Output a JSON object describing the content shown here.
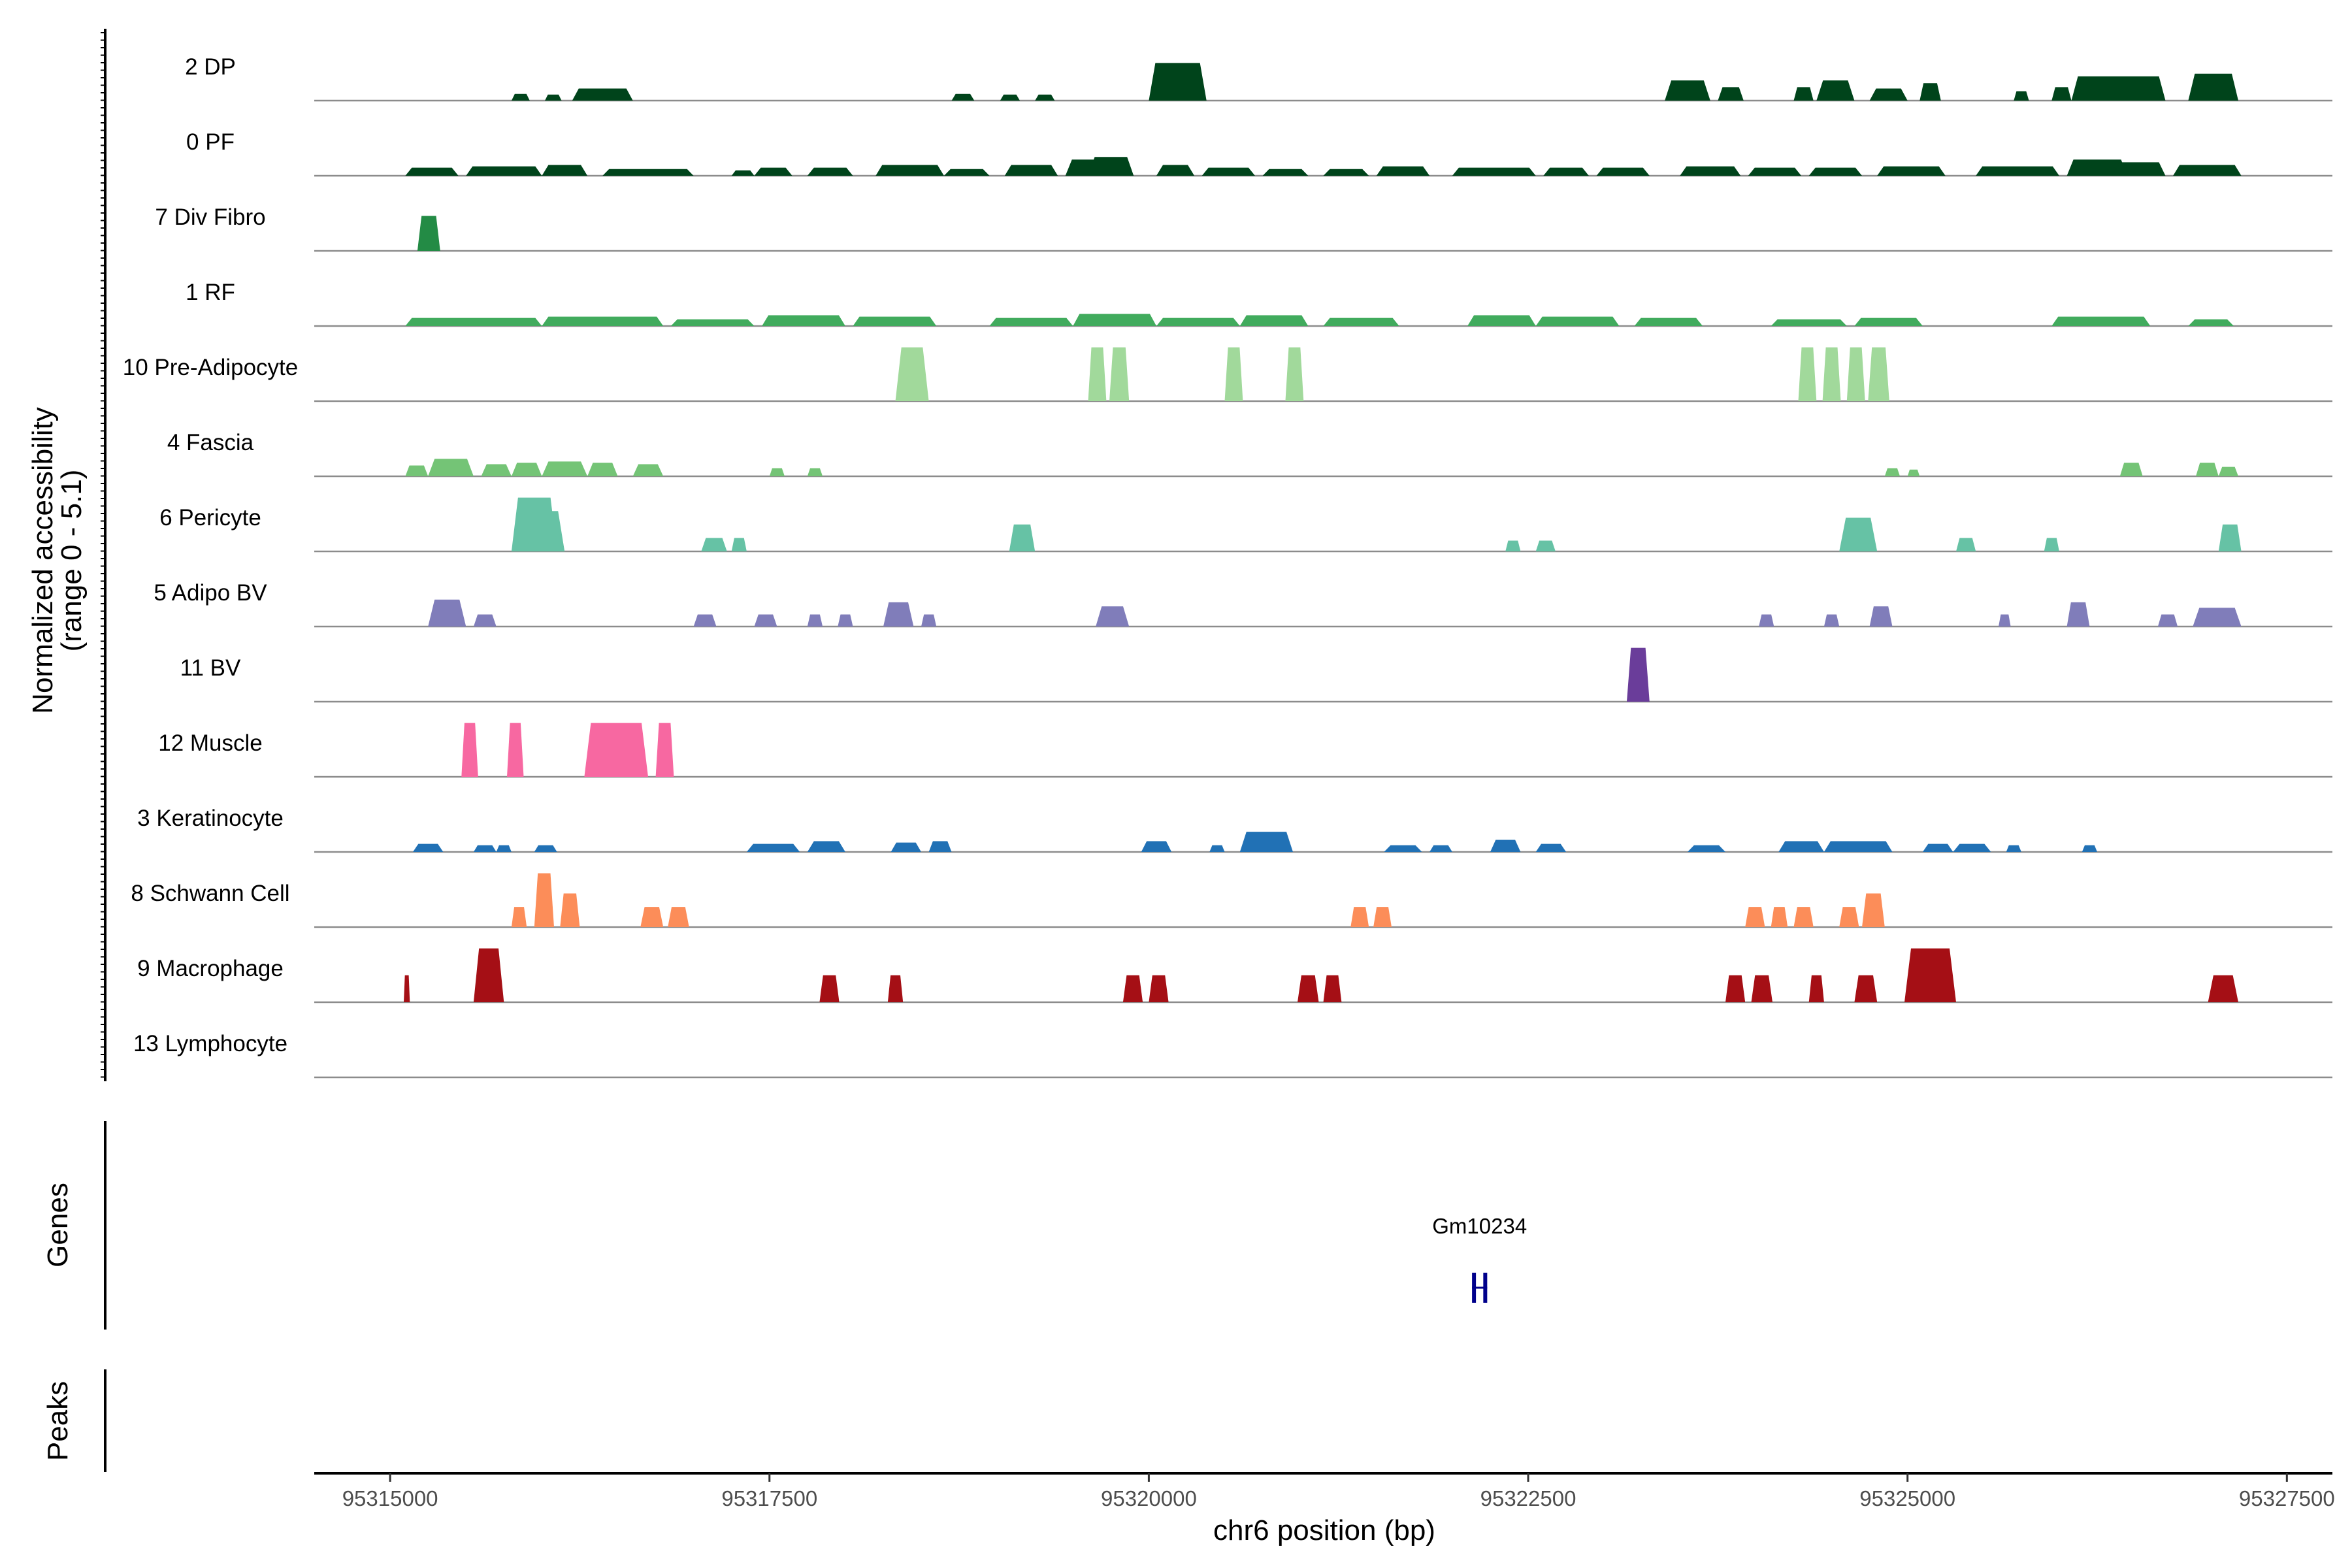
{
  "chart_data": {
    "type": "area",
    "title": "",
    "ylabel_line1": "Normalized accessibility",
    "ylabel_line2": "(range 0 - 5.1)",
    "y_range": [
      0,
      5.1
    ],
    "xlabel": "chr6 position (bp)",
    "x_range": [
      95314500,
      95327800
    ],
    "x_ticks": [
      95315000,
      95317500,
      95320000,
      95322500,
      95325000,
      95327500
    ],
    "x_tick_labels": [
      "95315000",
      "95317500",
      "95320000",
      "95322500",
      "95325000",
      "95327500"
    ],
    "genes_panel_label": "Genes",
    "peaks_panel_label": "Peaks",
    "genes": [
      {
        "name": "Gm10234",
        "start": 95322130,
        "end": 95322230,
        "strand": "-"
      }
    ],
    "peaks": [],
    "tracks": [
      {
        "name": "2 DP",
        "color": "#00441b",
        "peaks": [
          [
            95315800,
            95315920,
            0.5
          ],
          [
            95316020,
            95316130,
            0.45
          ],
          [
            95316200,
            95316600,
            0.9
          ],
          [
            95318700,
            95318850,
            0.5
          ],
          [
            95319020,
            95319150,
            0.45
          ],
          [
            95319250,
            95319380,
            0.45
          ],
          [
            95320000,
            95320380,
            2.8
          ],
          [
            95323400,
            95323700,
            1.5
          ],
          [
            95323750,
            95323920,
            1.0
          ],
          [
            95324250,
            95324380,
            1.0
          ],
          [
            95324400,
            95324650,
            1.5
          ],
          [
            95324750,
            95325000,
            0.9
          ],
          [
            95325080,
            95325220,
            1.3
          ],
          [
            95325700,
            95325800,
            0.7
          ],
          [
            95325950,
            95326080,
            1.0
          ],
          [
            95326080,
            95326700,
            1.8
          ],
          [
            95326850,
            95327180,
            2.0
          ]
        ]
      },
      {
        "name": "0 PF",
        "color": "#00441b",
        "peaks": [
          [
            95315100,
            95315450,
            0.6
          ],
          [
            95315500,
            95316000,
            0.7
          ],
          [
            95316000,
            95316300,
            0.8
          ],
          [
            95316400,
            95317000,
            0.5
          ],
          [
            95317250,
            95317400,
            0.4
          ],
          [
            95317400,
            95317650,
            0.6
          ],
          [
            95317750,
            95318050,
            0.6
          ],
          [
            95318200,
            95318650,
            0.8
          ],
          [
            95318650,
            95318950,
            0.5
          ],
          [
            95319050,
            95319400,
            0.8
          ],
          [
            95319450,
            95319900,
            1.2
          ],
          [
            95319600,
            95319900,
            1.4
          ],
          [
            95320050,
            95320300,
            0.8
          ],
          [
            95320350,
            95320700,
            0.6
          ],
          [
            95320750,
            95321050,
            0.5
          ],
          [
            95321150,
            95321450,
            0.5
          ],
          [
            95321500,
            95321850,
            0.7
          ],
          [
            95322000,
            95322550,
            0.6
          ],
          [
            95322600,
            95322900,
            0.6
          ],
          [
            95322950,
            95323300,
            0.6
          ],
          [
            95323500,
            95323900,
            0.7
          ],
          [
            95323950,
            95324300,
            0.6
          ],
          [
            95324350,
            95324700,
            0.6
          ],
          [
            95324800,
            95325250,
            0.7
          ],
          [
            95325450,
            95326000,
            0.7
          ],
          [
            95326050,
            95326450,
            1.2
          ],
          [
            95326350,
            95326700,
            1.0
          ],
          [
            95326750,
            95327200,
            0.8
          ]
        ]
      },
      {
        "name": "7 Div Fibro",
        "color": "#238b45",
        "peaks": [
          [
            95315180,
            95315330,
            2.6
          ]
        ]
      },
      {
        "name": "1 RF",
        "color": "#41ab5d",
        "peaks": [
          [
            95315100,
            95316000,
            0.6
          ],
          [
            95316000,
            95316800,
            0.7
          ],
          [
            95316850,
            95317400,
            0.5
          ],
          [
            95317450,
            95318000,
            0.8
          ],
          [
            95318050,
            95318600,
            0.7
          ],
          [
            95318950,
            95319500,
            0.6
          ],
          [
            95319500,
            95320050,
            0.9
          ],
          [
            95320050,
            95320600,
            0.6
          ],
          [
            95320600,
            95321050,
            0.8
          ],
          [
            95321150,
            95321650,
            0.6
          ],
          [
            95322100,
            95322550,
            0.8
          ],
          [
            95322550,
            95323100,
            0.7
          ],
          [
            95323200,
            95323650,
            0.6
          ],
          [
            95324100,
            95324600,
            0.5
          ],
          [
            95324650,
            95325100,
            0.6
          ],
          [
            95325950,
            95326600,
            0.7
          ],
          [
            95326850,
            95327150,
            0.5
          ]
        ]
      },
      {
        "name": "10 Pre-Adipocyte",
        "color": "#a1d99b",
        "peaks": [
          [
            95318330,
            95318550,
            4.0
          ],
          [
            95319600,
            95319720,
            4.0
          ],
          [
            95319740,
            95319870,
            4.0
          ],
          [
            95320500,
            95320620,
            4.0
          ],
          [
            95320900,
            95321020,
            4.0
          ],
          [
            95324280,
            95324400,
            4.0
          ],
          [
            95324440,
            95324560,
            4.0
          ],
          [
            95324600,
            95324720,
            4.0
          ],
          [
            95324740,
            95324880,
            4.0
          ]
        ]
      },
      {
        "name": "4 Fascia",
        "color": "#74c476",
        "peaks": [
          [
            95315100,
            95315250,
            0.8
          ],
          [
            95315250,
            95315550,
            1.3
          ],
          [
            95315600,
            95315800,
            0.9
          ],
          [
            95315800,
            95316000,
            1.0
          ],
          [
            95316000,
            95316300,
            1.1
          ],
          [
            95316300,
            95316500,
            1.0
          ],
          [
            95316600,
            95316800,
            0.9
          ],
          [
            95317500,
            95317600,
            0.6
          ],
          [
            95317750,
            95317850,
            0.6
          ],
          [
            95324850,
            95324950,
            0.6
          ],
          [
            95325000,
            95325080,
            0.5
          ],
          [
            95326400,
            95326550,
            1.0
          ],
          [
            95326900,
            95327050,
            1.0
          ],
          [
            95327050,
            95327180,
            0.7
          ]
        ]
      },
      {
        "name": "6 Pericyte",
        "color": "#66c2a5",
        "peaks": [
          [
            95315800,
            95316100,
            4.0
          ],
          [
            95315900,
            95316150,
            3.0
          ],
          [
            95317050,
            95317220,
            1.0
          ],
          [
            95317250,
            95317350,
            1.0
          ],
          [
            95319080,
            95319250,
            2.0
          ],
          [
            95322350,
            95322450,
            0.8
          ],
          [
            95322550,
            95322680,
            0.8
          ],
          [
            95324550,
            95324800,
            2.5
          ],
          [
            95325320,
            95325450,
            1.0
          ],
          [
            95325900,
            95326000,
            1.0
          ],
          [
            95327050,
            95327200,
            2.0
          ]
        ]
      },
      {
        "name": "5 Adipo BV",
        "color": "#807dba",
        "peaks": [
          [
            95315250,
            95315500,
            2.0
          ],
          [
            95315550,
            95315700,
            0.9
          ],
          [
            95317000,
            95317150,
            0.9
          ],
          [
            95317400,
            95317550,
            0.9
          ],
          [
            95317750,
            95317850,
            0.9
          ],
          [
            95317950,
            95318050,
            0.9
          ],
          [
            95318250,
            95318450,
            1.8
          ],
          [
            95318500,
            95318600,
            0.9
          ],
          [
            95319650,
            95319870,
            1.5
          ],
          [
            95324020,
            95324120,
            0.9
          ],
          [
            95324450,
            95324550,
            0.9
          ],
          [
            95324750,
            95324900,
            1.5
          ],
          [
            95325600,
            95325680,
            0.9
          ],
          [
            95326050,
            95326200,
            1.8
          ],
          [
            95326650,
            95326780,
            0.9
          ],
          [
            95326880,
            95327200,
            1.4
          ]
        ]
      },
      {
        "name": "11 BV",
        "color": "#6a3d9a",
        "peaks": [
          [
            95323150,
            95323300,
            4.0
          ]
        ]
      },
      {
        "name": "12 Muscle",
        "color": "#f768a1",
        "peaks": [
          [
            95315470,
            95315580,
            4.0
          ],
          [
            95315770,
            95315880,
            4.0
          ],
          [
            95316280,
            95316700,
            4.0
          ],
          [
            95316750,
            95316870,
            4.0
          ]
        ]
      },
      {
        "name": "3 Keratinocyte",
        "color": "#2171b5",
        "peaks": [
          [
            95315150,
            95315350,
            0.6
          ],
          [
            95315550,
            95315700,
            0.5
          ],
          [
            95315700,
            95315800,
            0.5
          ],
          [
            95315950,
            95316100,
            0.5
          ],
          [
            95317350,
            95317700,
            0.6
          ],
          [
            95317750,
            95318000,
            0.8
          ],
          [
            95318300,
            95318500,
            0.7
          ],
          [
            95318550,
            95318700,
            0.8
          ],
          [
            95319950,
            95320150,
            0.8
          ],
          [
            95320400,
            95320500,
            0.5
          ],
          [
            95320600,
            95320950,
            1.5
          ],
          [
            95321550,
            95321800,
            0.5
          ],
          [
            95321850,
            95322000,
            0.5
          ],
          [
            95322250,
            95322450,
            0.9
          ],
          [
            95322550,
            95322750,
            0.6
          ],
          [
            95323550,
            95323800,
            0.5
          ],
          [
            95324150,
            95324450,
            0.8
          ],
          [
            95324450,
            95324900,
            0.8
          ],
          [
            95325100,
            95325300,
            0.6
          ],
          [
            95325300,
            95325550,
            0.6
          ],
          [
            95325650,
            95325750,
            0.5
          ],
          [
            95326150,
            95326250,
            0.5
          ]
        ]
      },
      {
        "name": "8 Schwann Cell",
        "color": "#fc8d59",
        "peaks": [
          [
            95315800,
            95315900,
            1.5
          ],
          [
            95315950,
            95316080,
            4.0
          ],
          [
            95316120,
            95316250,
            2.5
          ],
          [
            95316650,
            95316800,
            1.5
          ],
          [
            95316830,
            95316970,
            1.5
          ],
          [
            95321330,
            95321450,
            1.5
          ],
          [
            95321480,
            95321600,
            1.5
          ],
          [
            95323930,
            95324060,
            1.5
          ],
          [
            95324100,
            95324210,
            1.5
          ],
          [
            95324250,
            95324380,
            1.5
          ],
          [
            95324550,
            95324680,
            1.5
          ],
          [
            95324700,
            95324850,
            2.5
          ]
        ]
      },
      {
        "name": "9 Macrophage",
        "color": "#a50f15",
        "peaks": [
          [
            95315090,
            95315130,
            2.0
          ],
          [
            95315550,
            95315750,
            4.0
          ],
          [
            95317830,
            95317960,
            2.0
          ],
          [
            95318280,
            95318380,
            2.0
          ],
          [
            95319830,
            95319960,
            2.0
          ],
          [
            95320000,
            95320130,
            2.0
          ],
          [
            95320980,
            95321120,
            2.0
          ],
          [
            95321150,
            95321270,
            2.0
          ],
          [
            95323800,
            95323930,
            2.0
          ],
          [
            95323970,
            95324110,
            2.0
          ],
          [
            95324350,
            95324450,
            2.0
          ],
          [
            95324650,
            95324800,
            2.0
          ],
          [
            95324980,
            95325320,
            4.0
          ],
          [
            95326980,
            95327180,
            2.0
          ]
        ]
      },
      {
        "name": "13 Lymphocyte",
        "color": "#08519c",
        "peaks": []
      }
    ]
  }
}
